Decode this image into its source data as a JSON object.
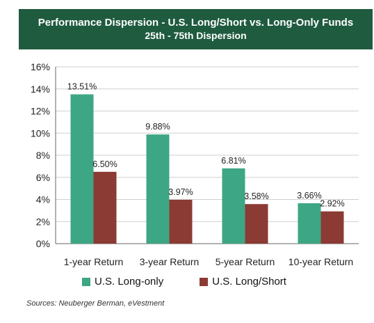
{
  "header": {
    "title": "Performance Dispersion - U.S. Long/Short vs. Long-Only Funds",
    "subtitle": "25th - 75th Dispersion"
  },
  "colors": {
    "header_bg": "#1f5b3f",
    "long_only": "#3da684",
    "long_short": "#8b3a34",
    "gridline": "#cfcfcf",
    "axis": "#666666"
  },
  "chart_data": {
    "type": "bar",
    "title": "Performance Dispersion - U.S. Long/Short vs. Long-Only Funds",
    "subtitle": "25th - 75th Dispersion",
    "categories": [
      "1-year Return",
      "3-year Return",
      "5-year Return",
      "10-year Return"
    ],
    "series": [
      {
        "name": "U.S. Long-only",
        "values": [
          13.51,
          9.88,
          6.81,
          3.66
        ],
        "labels": [
          "13.51%",
          "9.88%",
          "6.81%",
          "3.66%"
        ]
      },
      {
        "name": "U.S. Long/Short",
        "values": [
          6.5,
          3.97,
          3.58,
          2.92
        ],
        "labels": [
          "6.50%",
          "3.97%",
          "3.58%",
          "2.92%"
        ]
      }
    ],
    "yticks": [
      "0%",
      "2%",
      "4%",
      "6%",
      "8%",
      "10%",
      "12%",
      "14%",
      "16%"
    ],
    "ylim": [
      0,
      16
    ],
    "grid": true,
    "legend": "bottom"
  },
  "legend": {
    "long_only": "U.S. Long-only",
    "long_short": "U.S. Long/Short"
  },
  "source": "Sources: Neuberger Berman, eVestment"
}
